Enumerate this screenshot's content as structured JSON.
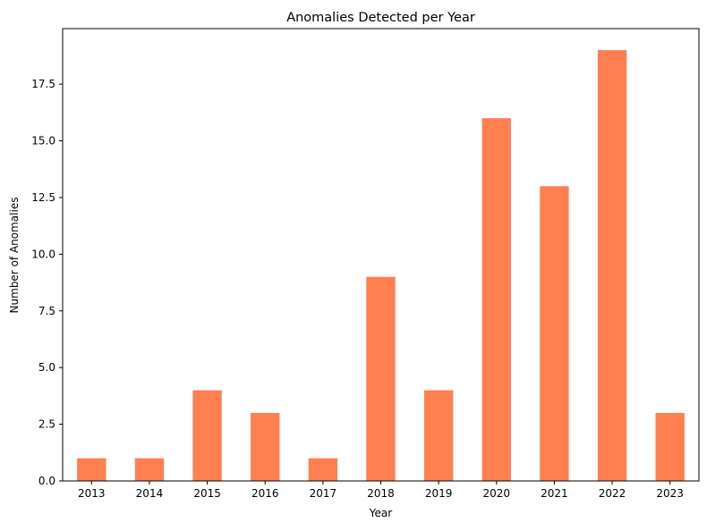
{
  "chart_data": {
    "type": "bar",
    "title": "Anomalies Detected per Year",
    "xlabel": "Year",
    "ylabel": "Number of Anomalies",
    "categories": [
      "2013",
      "2014",
      "2015",
      "2016",
      "2017",
      "2018",
      "2019",
      "2020",
      "2021",
      "2022",
      "2023"
    ],
    "values": [
      1,
      1,
      4,
      3,
      1,
      9,
      4,
      16,
      13,
      19,
      3
    ],
    "ylim": [
      0,
      19.95
    ],
    "yticks": [
      0.0,
      2.5,
      5.0,
      7.5,
      10.0,
      12.5,
      15.0,
      17.5
    ],
    "ytick_labels": [
      "0.0",
      "2.5",
      "5.0",
      "7.5",
      "10.0",
      "12.5",
      "15.0",
      "17.5"
    ],
    "bar_color": "#ff7f50",
    "grid": false,
    "legend": "none"
  }
}
